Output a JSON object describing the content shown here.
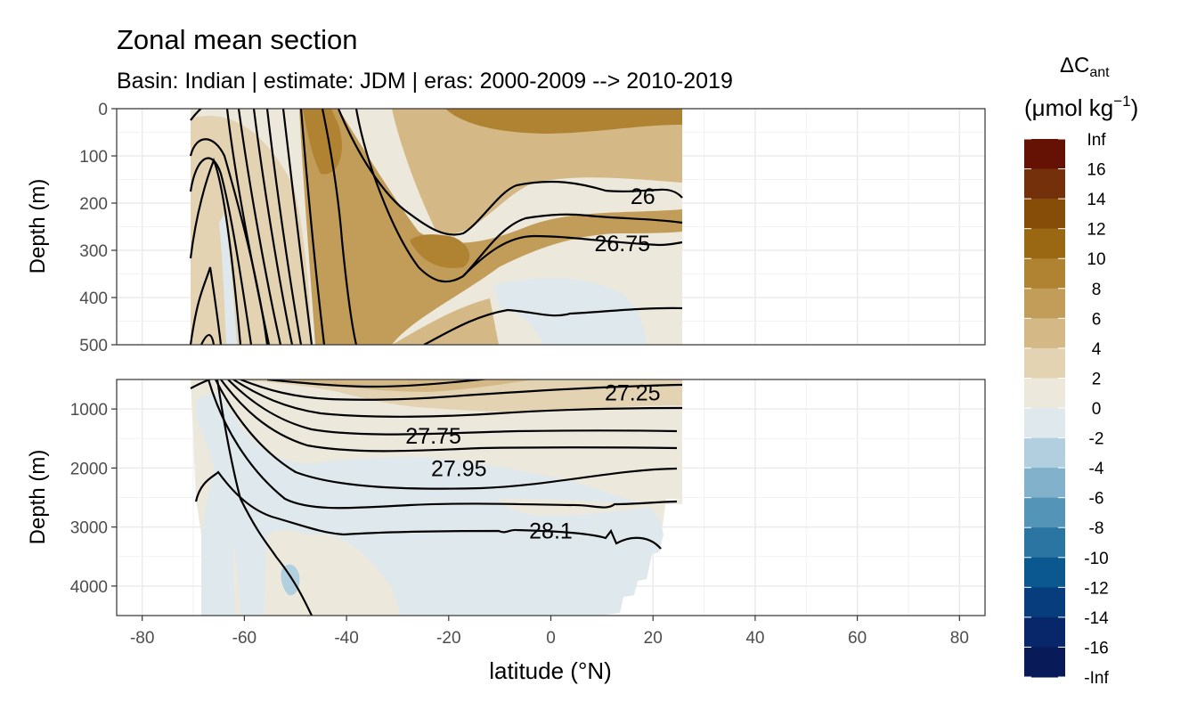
{
  "chart_data": {
    "type": "contour",
    "title": "Zonal mean section",
    "subtitle": "Basin: Indian | estimate: JDM  | eras: 2000-2009 --> 2010-2019",
    "xlabel": "latitude (°N)",
    "x_ticks": [
      "-80",
      "-60",
      "-40",
      "-20",
      "0",
      "20",
      "40",
      "60",
      "80"
    ],
    "xlim": [
      -85,
      85
    ],
    "panels": [
      {
        "ylabel": "Depth (m)",
        "ylim": [
          0,
          500
        ],
        "y_ticks": [
          "0",
          "100",
          "200",
          "300",
          "400",
          "500"
        ],
        "isopycnal_labels": [
          {
            "label": "26",
            "lat": 18,
            "depth": 185
          },
          {
            "label": "26.75",
            "lat": 14,
            "depth": 285
          }
        ]
      },
      {
        "ylabel": "Depth (m)",
        "ylim": [
          500,
          4500
        ],
        "y_ticks": [
          "1000",
          "2000",
          "3000",
          "4000"
        ],
        "isopycnal_labels": [
          {
            "label": "27.25",
            "lat": 16,
            "depth": 720
          },
          {
            "label": "27.75",
            "lat": -23,
            "depth": 1450
          },
          {
            "label": "27.95",
            "lat": -18,
            "depth": 2000
          },
          {
            "label": "28.1",
            "lat": 0,
            "depth": 3060
          }
        ]
      }
    ],
    "legend": {
      "title_main": "ΔC",
      "title_sub": "ant",
      "unit_main": "(μmol kg",
      "unit_sup": "−1",
      "unit_close": ")",
      "labels": [
        "Inf",
        "16",
        "14",
        "12",
        "10",
        "8",
        "6",
        "4",
        "2",
        "0",
        "-2",
        "-4",
        "-6",
        "-8",
        "-10",
        "-12",
        "-14",
        "-16",
        "-Inf"
      ],
      "colors": [
        "#651104",
        "#74300a",
        "#864d08",
        "#9a6713",
        "#b08332",
        "#c29d5a",
        "#d4b987",
        "#e3d3b2",
        "#ede8dc",
        "#dfe9ed",
        "#b2cfe0",
        "#82b1cb",
        "#5494b6",
        "#2b75a2",
        "#0b5891",
        "#083d7d",
        "#08266a",
        "#081a57"
      ]
    }
  }
}
